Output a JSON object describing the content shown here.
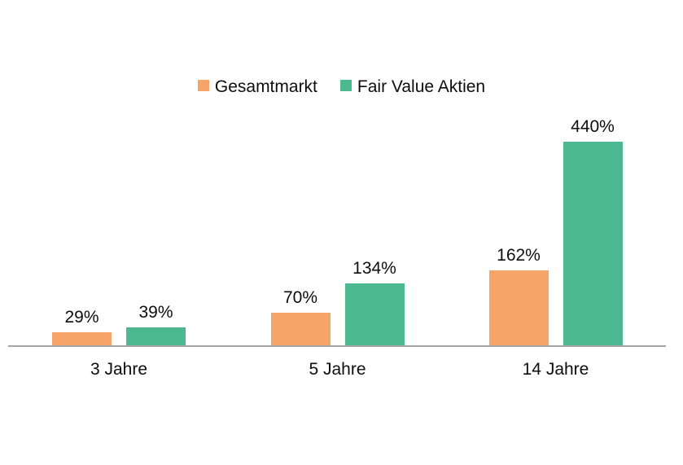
{
  "chart_data": {
    "type": "bar",
    "title": "",
    "xlabel": "",
    "ylabel": "",
    "categories": [
      "3 Jahre",
      "5 Jahre",
      "14 Jahre"
    ],
    "series": [
      {
        "name": "Gesamtmarkt",
        "color": "#F6A469",
        "values": [
          29,
          70,
          162
        ],
        "labels": [
          "29%",
          "70%",
          "162%"
        ]
      },
      {
        "name": "Fair Value Aktien",
        "color": "#4DB990",
        "values": [
          39,
          134,
          440
        ],
        "labels": [
          "39%",
          "134%",
          "440%"
        ]
      }
    ],
    "unit": "%",
    "ylim": [
      0,
      440
    ],
    "grid": false,
    "legend_position": "top-center",
    "value_labels_shown": true
  },
  "colors": {
    "background": "#FFFFFF",
    "axis_line": "#A6A6A6",
    "text": "#0D0D0D"
  }
}
